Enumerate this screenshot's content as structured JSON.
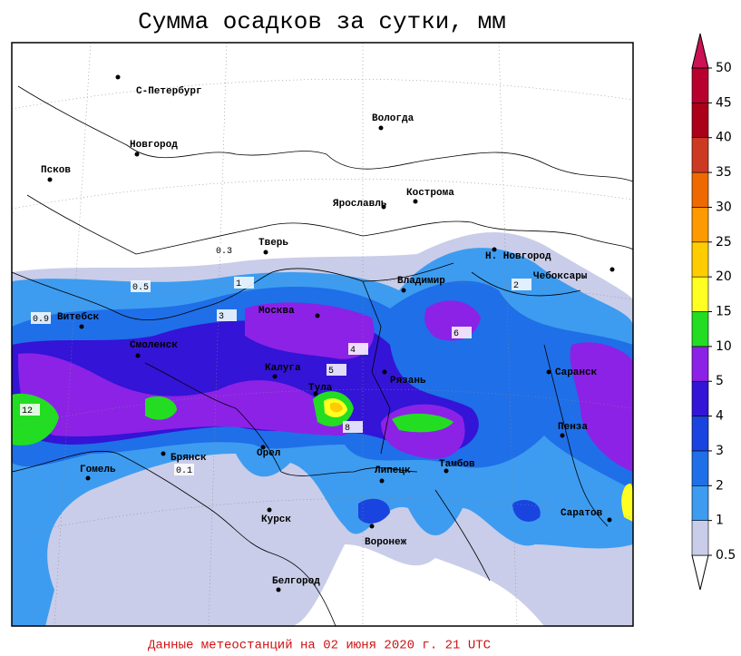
{
  "header": {
    "title": "Сумма осадков за сутки, мм"
  },
  "footer": "Данные метеостанций на 02 июня 2020 г. 21 UTC",
  "cities": [
    "С-Петербург",
    "Новгород",
    "Псков",
    "Вологда",
    "Ярославль",
    "Кострома",
    "Тверь",
    "Н. Новгород",
    "Чебоксары",
    "Владимир",
    "Витебск",
    "Москва",
    "Смоленск",
    "Калуга",
    "Тула",
    "Рязань",
    "Саранск",
    "Пенза",
    "Брянск",
    "Орел",
    "Гомель",
    "Липецк",
    "Тамбов",
    "Курск",
    "Воронеж",
    "Саратов",
    "Белгород"
  ],
  "contour_labels": [
    "12",
    "8",
    "6",
    "5",
    "4",
    "3",
    "2",
    "1",
    "0.9",
    "0.5",
    "0.3",
    "0.1"
  ],
  "legend": {
    "levels": [
      0.5,
      1,
      2,
      3,
      4,
      5,
      10,
      15,
      20,
      25,
      30,
      35,
      40,
      45,
      50
    ],
    "colors": [
      "#c9cde9",
      "#3d9cf0",
      "#1f6fe8",
      "#1a44e0",
      "#3414d6",
      "#8c22e6",
      "#22dd22",
      "#ffff22",
      "#ffcc00",
      "#ff9900",
      "#ee6a00",
      "#cc3a22",
      "#aa0018",
      "#b8002e",
      "#cc1155"
    ]
  }
}
